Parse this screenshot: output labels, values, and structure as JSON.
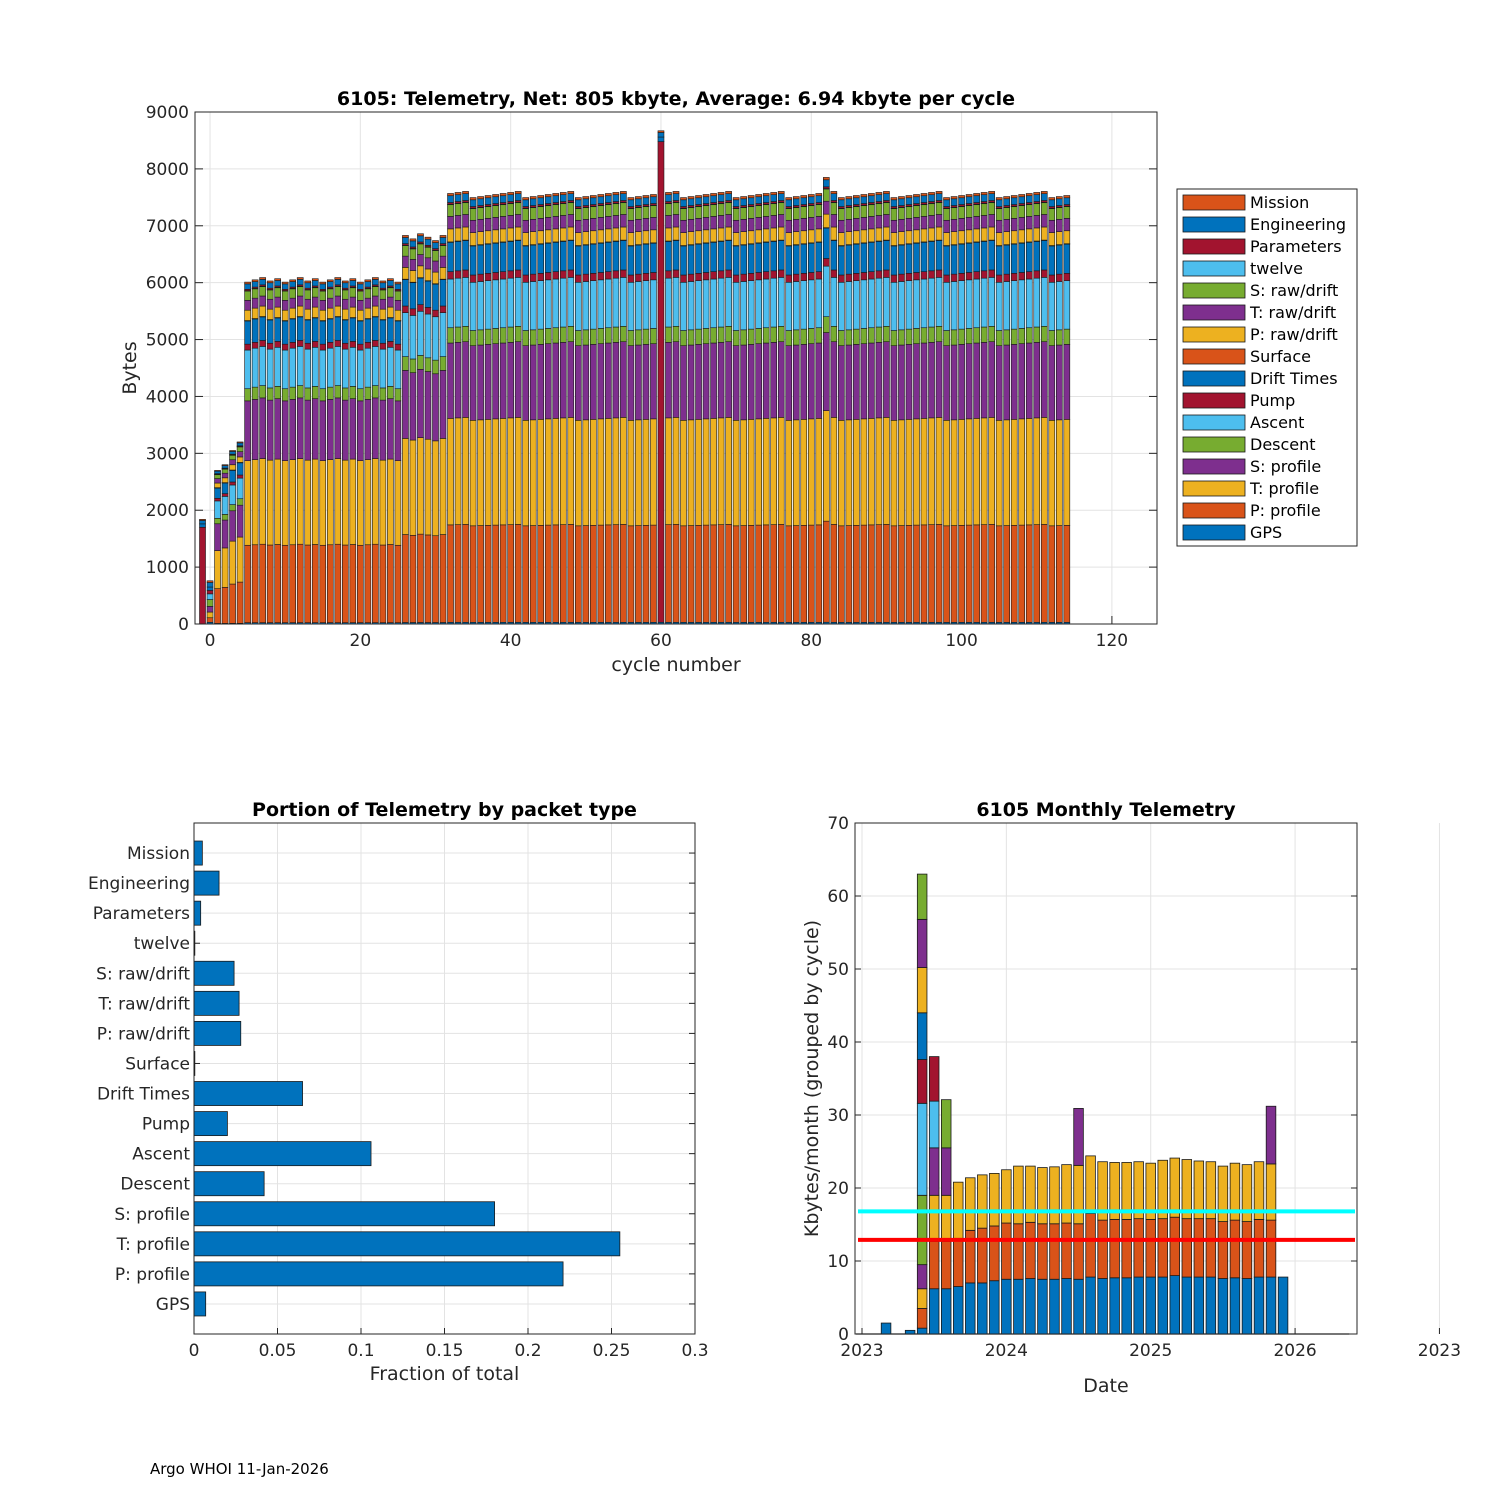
{
  "colors": {
    "GPS": "#0072BD",
    "P: profile": "#D95319",
    "T: profile": "#EDB120",
    "S: profile": "#7E2F8E",
    "Descent": "#77AC30",
    "Ascent": "#4DBEEE",
    "Pump": "#A2142F",
    "Drift Times": "#0072BD",
    "Surface": "#D95319",
    "P: raw/drift": "#EDB120",
    "T: raw/drift": "#7E2F8E",
    "S: raw/drift": "#77AC30",
    "twelve": "#4DBEEE",
    "Parameters": "#A2142F",
    "Engineering": "#0072BD",
    "Mission": "#D95319",
    "cyan_line": "#00FFFF",
    "red_line": "#FF0000"
  },
  "footer": "Argo WHOI 11-Jan-2026",
  "chart_data": [
    {
      "type": "bar",
      "stacked": true,
      "title": "6105: Telemetry, Net:    805 kbyte,  Average: 6.94 kbyte per cycle",
      "xlabel": "cycle number",
      "ylabel": "Bytes",
      "xlim": [
        -2,
        126
      ],
      "ylim": [
        0,
        9000
      ],
      "xticks": [
        0,
        20,
        40,
        60,
        80,
        100,
        120
      ],
      "yticks": [
        0,
        1000,
        2000,
        3000,
        4000,
        5000,
        6000,
        7000,
        8000,
        9000
      ],
      "grid": true,
      "legend_position": "outside-right",
      "legend": [
        "Mission",
        "Engineering",
        "Parameters",
        "twelve",
        "S: raw/drift",
        "T: raw/drift",
        "P: raw/drift",
        "Surface",
        "Drift Times",
        "Pump",
        "Ascent",
        "Descent",
        "S: profile",
        "T: profile",
        "P: profile",
        "GPS"
      ],
      "stack_order": [
        "GPS",
        "P: profile",
        "T: profile",
        "S: profile",
        "Descent",
        "Ascent",
        "Pump",
        "Drift Times",
        "Surface",
        "P: raw/drift",
        "T: raw/drift",
        "S: raw/drift",
        "twelve",
        "Parameters",
        "Engineering",
        "Mission"
      ],
      "cycles": {
        "first": -1,
        "last": 114
      },
      "special_cycles": [
        {
          "cycle": -1,
          "segments": {
            "Pump": 1700,
            "Drift Times": 60,
            "Engineering": 60,
            "Mission": 20
          }
        },
        {
          "cycle": 0,
          "segments": {
            "GPS": 30,
            "P: profile": 80,
            "T: profile": 100,
            "S: profile": 100,
            "Descent": 120,
            "Ascent": 100,
            "Pump": 60,
            "Drift Times": 60,
            "Engineering": 80,
            "Mission": 30
          }
        },
        {
          "cycle": 60,
          "segments": {
            "GPS": 30,
            "Pump": 8450,
            "Drift Times": 80,
            "Engineering": 80,
            "Mission": 30
          }
        }
      ],
      "typical_totals": {
        "cycles_1_4": [
          2700,
          2800,
          3050,
          3200
        ],
        "cycles_5_25": 6050,
        "cycles_26_31": 6800,
        "cycles_32_114": 7550,
        "peak_cycle_82": 7850
      },
      "typical_segments_full": {
        "GPS": 30,
        "P: profile": 1720,
        "T: profile": 1880,
        "S: profile": 1330,
        "Descent": 270,
        "Ascent": 860,
        "Pump": 130,
        "Drift Times": 520,
        "Surface": 5,
        "P: raw/drift": 230,
        "T: raw/drift": 220,
        "S: raw/drift": 210,
        "twelve": 5,
        "Parameters": 30,
        "Engineering": 120,
        "Mission": 40
      }
    },
    {
      "type": "bar",
      "orientation": "horizontal",
      "title": "Portion of Telemetry by packet type",
      "xlabel": "Fraction of total",
      "ylabel": "",
      "xlim": [
        0,
        0.3
      ],
      "xticks": [
        0,
        0.05,
        0.1,
        0.15,
        0.2,
        0.25,
        0.3
      ],
      "xticklabels": [
        "0",
        "0.05",
        "0.1",
        "0.15",
        "0.2",
        "0.25",
        "0.3"
      ],
      "grid": true,
      "categories": [
        "Mission",
        "Engineering",
        "Parameters",
        "twelve",
        "S: raw/drift",
        "T: raw/drift",
        "P: raw/drift",
        "Surface",
        "Drift Times",
        "Pump",
        "Ascent",
        "Descent",
        "S: profile",
        "T: profile",
        "P: profile",
        "GPS"
      ],
      "values": [
        0.005,
        0.015,
        0.004,
        0.0005,
        0.024,
        0.027,
        0.028,
        0.0005,
        0.065,
        0.02,
        0.106,
        0.042,
        0.18,
        0.255,
        0.221,
        0.007
      ]
    },
    {
      "type": "bar",
      "stacked": true,
      "title": "6105 Monthly Telemetry",
      "xlabel": "Date",
      "ylabel": "Kbytes/month (grouped by cycle)",
      "ylim": [
        0,
        70
      ],
      "yticks": [
        0,
        10,
        20,
        30,
        40,
        50,
        60,
        70
      ],
      "xlim_months": [
        -1,
        40
      ],
      "xticks_months": [
        0,
        12,
        24,
        36,
        48
      ],
      "xticklabels": [
        "2023",
        "2024",
        "2025",
        "2026",
        "2023"
      ],
      "grid": true,
      "segment_order": [
        "GPS",
        "P: profile",
        "T: profile",
        "S: profile",
        "Descent",
        "Ascent",
        "Pump",
        "Drift Times",
        "Surface",
        "P: raw/drift",
        "T: raw/drift",
        "S: raw/drift",
        "twelve",
        "Parameters",
        "Engineering",
        "Mission"
      ],
      "months": [
        {
          "m": 2,
          "segments": [
            [
              "GPS",
              1.5
            ]
          ]
        },
        {
          "m": 4,
          "segments": [
            [
              "GPS",
              0.5
            ]
          ]
        },
        {
          "m": 5,
          "segments": [
            [
              "GPS",
              0.8
            ],
            [
              "P: profile",
              2.7
            ],
            [
              "T: profile",
              2.7
            ],
            [
              "S: profile",
              3.3
            ],
            [
              "Descent",
              9.5
            ],
            [
              "Ascent",
              12.6
            ],
            [
              "Pump",
              6.0
            ],
            [
              "Drift Times",
              6.4
            ],
            [
              "P: raw/drift",
              6.2
            ],
            [
              "T: raw/drift",
              6.6
            ],
            [
              "S: raw/drift",
              6.2
            ]
          ]
        },
        {
          "m": 6,
          "segments": [
            [
              "GPS",
              6.2
            ],
            [
              "P: profile",
              6.5
            ],
            [
              "T: profile",
              6.3
            ],
            [
              "S: profile",
              6.5
            ],
            [
              "Ascent",
              6.4
            ],
            [
              "Pump",
              6.1
            ]
          ]
        },
        {
          "m": 7,
          "segments": [
            [
              "GPS",
              6.2
            ],
            [
              "P: profile",
              6.5
            ],
            [
              "T: profile",
              6.3
            ],
            [
              "S: profile",
              6.5
            ],
            [
              "Descent",
              6.6
            ]
          ]
        },
        {
          "m": 8,
          "segments": [
            [
              "GPS",
              6.5
            ],
            [
              "P: profile",
              6.6
            ],
            [
              "T: profile",
              7.7
            ]
          ]
        },
        {
          "m": 9,
          "segments": [
            [
              "GPS",
              7.0
            ],
            [
              "P: profile",
              7.2
            ],
            [
              "T: profile",
              7.2
            ]
          ]
        },
        {
          "m": 10,
          "segments": [
            [
              "GPS",
              7.0
            ],
            [
              "P: profile",
              7.5
            ],
            [
              "T: profile",
              7.3
            ]
          ]
        },
        {
          "m": 11,
          "segments": [
            [
              "GPS",
              7.3
            ],
            [
              "P: profile",
              7.5
            ],
            [
              "T: profile",
              7.2
            ]
          ]
        },
        {
          "m": 12,
          "segments": [
            [
              "GPS",
              7.5
            ],
            [
              "P: profile",
              7.7
            ],
            [
              "T: profile",
              7.3
            ]
          ]
        },
        {
          "m": 13,
          "segments": [
            [
              "GPS",
              7.5
            ],
            [
              "P: profile",
              7.6
            ],
            [
              "T: profile",
              7.9
            ]
          ]
        },
        {
          "m": 14,
          "segments": [
            [
              "GPS",
              7.6
            ],
            [
              "P: profile",
              7.7
            ],
            [
              "T: profile",
              7.7
            ]
          ]
        },
        {
          "m": 15,
          "segments": [
            [
              "GPS",
              7.5
            ],
            [
              "P: profile",
              7.6
            ],
            [
              "T: profile",
              7.7
            ]
          ]
        },
        {
          "m": 16,
          "segments": [
            [
              "GPS",
              7.5
            ],
            [
              "P: profile",
              7.6
            ],
            [
              "T: profile",
              7.8
            ]
          ]
        },
        {
          "m": 17,
          "segments": [
            [
              "GPS",
              7.6
            ],
            [
              "P: profile",
              7.6
            ],
            [
              "T: profile",
              8.0
            ]
          ]
        },
        {
          "m": 18,
          "segments": [
            [
              "GPS",
              7.5
            ],
            [
              "P: profile",
              7.6
            ],
            [
              "T: profile",
              8.0
            ],
            [
              "S: profile",
              7.8
            ]
          ]
        },
        {
          "m": 19,
          "segments": [
            [
              "GPS",
              7.8
            ],
            [
              "P: profile",
              8.7
            ],
            [
              "T: profile",
              7.9
            ]
          ]
        },
        {
          "m": 20,
          "segments": [
            [
              "GPS",
              7.6
            ],
            [
              "P: profile",
              8.0
            ],
            [
              "T: profile",
              8.0
            ]
          ]
        },
        {
          "m": 21,
          "segments": [
            [
              "GPS",
              7.7
            ],
            [
              "P: profile",
              8.0
            ],
            [
              "T: profile",
              7.8
            ]
          ]
        },
        {
          "m": 22,
          "segments": [
            [
              "GPS",
              7.7
            ],
            [
              "P: profile",
              8.0
            ],
            [
              "T: profile",
              7.8
            ]
          ]
        },
        {
          "m": 23,
          "segments": [
            [
              "GPS",
              7.8
            ],
            [
              "P: profile",
              8.0
            ],
            [
              "T: profile",
              7.8
            ]
          ]
        },
        {
          "m": 24,
          "segments": [
            [
              "GPS",
              7.8
            ],
            [
              "P: profile",
              7.9
            ],
            [
              "T: profile",
              7.7
            ]
          ]
        },
        {
          "m": 25,
          "segments": [
            [
              "GPS",
              7.8
            ],
            [
              "P: profile",
              8.0
            ],
            [
              "T: profile",
              8.0
            ]
          ]
        },
        {
          "m": 26,
          "segments": [
            [
              "GPS",
              8.0
            ],
            [
              "P: profile",
              8.0
            ],
            [
              "T: profile",
              8.1
            ]
          ]
        },
        {
          "m": 27,
          "segments": [
            [
              "GPS",
              7.8
            ],
            [
              "P: profile",
              8.0
            ],
            [
              "T: profile",
              8.1
            ]
          ]
        },
        {
          "m": 28,
          "segments": [
            [
              "GPS",
              7.8
            ],
            [
              "P: profile",
              8.0
            ],
            [
              "T: profile",
              7.9
            ]
          ]
        },
        {
          "m": 29,
          "segments": [
            [
              "GPS",
              7.8
            ],
            [
              "P: profile",
              8.0
            ],
            [
              "T: profile",
              7.8
            ]
          ]
        },
        {
          "m": 30,
          "segments": [
            [
              "GPS",
              7.6
            ],
            [
              "P: profile",
              7.8
            ],
            [
              "T: profile",
              7.6
            ]
          ]
        },
        {
          "m": 31,
          "segments": [
            [
              "GPS",
              7.7
            ],
            [
              "P: profile",
              7.9
            ],
            [
              "T: profile",
              7.8
            ]
          ]
        },
        {
          "m": 32,
          "segments": [
            [
              "GPS",
              7.6
            ],
            [
              "P: profile",
              7.8
            ],
            [
              "T: profile",
              7.8
            ]
          ]
        },
        {
          "m": 33,
          "segments": [
            [
              "GPS",
              7.8
            ],
            [
              "P: profile",
              7.9
            ],
            [
              "T: profile",
              7.9
            ]
          ]
        },
        {
          "m": 34,
          "segments": [
            [
              "GPS",
              7.8
            ],
            [
              "P: profile",
              7.8
            ],
            [
              "T: profile",
              7.7
            ],
            [
              "S: profile",
              7.9
            ]
          ]
        },
        {
          "m": 35,
          "segments": [
            [
              "GPS",
              7.8
            ]
          ]
        }
      ],
      "reference_lines": [
        {
          "name": "cyan",
          "value": 16.8
        },
        {
          "name": "red",
          "value": 12.9
        }
      ]
    }
  ]
}
